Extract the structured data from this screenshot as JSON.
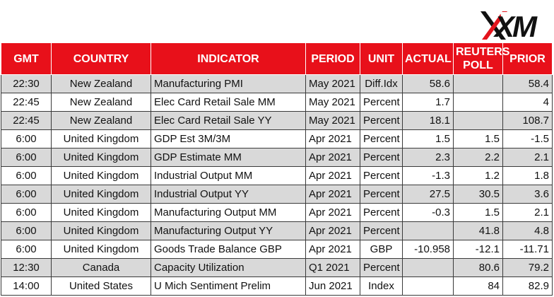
{
  "brand": {
    "logo_text": "XM"
  },
  "columns": {
    "gmt": "GMT",
    "country": "COUNTRY",
    "indicator": "INDICATOR",
    "period": "PERIOD",
    "unit": "UNIT",
    "actual": "ACTUAL",
    "poll": "REUTERS POLL",
    "prior": "PRIOR"
  },
  "rows": [
    {
      "gmt": "22:30",
      "country": "New Zealand",
      "indicator": "Manufacturing PMI",
      "period": "May 2021",
      "unit": "Diff.Idx",
      "actual": "58.6",
      "poll": "",
      "prior": "58.4"
    },
    {
      "gmt": "22:45",
      "country": "New Zealand",
      "indicator": "Elec Card Retail Sale MM",
      "period": "May 2021",
      "unit": "Percent",
      "actual": "1.7",
      "poll": "",
      "prior": "4"
    },
    {
      "gmt": "22:45",
      "country": "New Zealand",
      "indicator": "Elec Card Retail Sale YY",
      "period": "May 2021",
      "unit": "Percent",
      "actual": "18.1",
      "poll": "",
      "prior": "108.7"
    },
    {
      "gmt": "6:00",
      "country": "United Kingdom",
      "indicator": "GDP Est 3M/3M",
      "period": "Apr 2021",
      "unit": "Percent",
      "actual": "1.5",
      "poll": "1.5",
      "prior": "-1.5"
    },
    {
      "gmt": "6:00",
      "country": "United Kingdom",
      "indicator": "GDP Estimate MM",
      "period": "Apr 2021",
      "unit": "Percent",
      "actual": "2.3",
      "poll": "2.2",
      "prior": "2.1"
    },
    {
      "gmt": "6:00",
      "country": "United Kingdom",
      "indicator": "Industrial Output MM",
      "period": "Apr 2021",
      "unit": "Percent",
      "actual": "-1.3",
      "poll": "1.2",
      "prior": "1.8"
    },
    {
      "gmt": "6:00",
      "country": "United Kingdom",
      "indicator": "Industrial Output YY",
      "period": "Apr 2021",
      "unit": "Percent",
      "actual": "27.5",
      "poll": "30.5",
      "prior": "3.6"
    },
    {
      "gmt": "6:00",
      "country": "United Kingdom",
      "indicator": "Manufacturing Output MM",
      "period": "Apr 2021",
      "unit": "Percent",
      "actual": "-0.3",
      "poll": "1.5",
      "prior": "2.1"
    },
    {
      "gmt": "6:00",
      "country": "United Kingdom",
      "indicator": "Manufacturing Output YY",
      "period": "Apr 2021",
      "unit": "Percent",
      "actual": "",
      "poll": "41.8",
      "prior": "4.8"
    },
    {
      "gmt": "6:00",
      "country": "United Kingdom",
      "indicator": "Goods Trade Balance GBP",
      "period": "Apr 2021",
      "unit": "GBP",
      "actual": "-10.958",
      "poll": "-12.1",
      "prior": "-11.71"
    },
    {
      "gmt": "12:30",
      "country": "Canada",
      "indicator": "Capacity Utilization",
      "period": "Q1 2021",
      "unit": "Percent",
      "actual": "",
      "poll": "80.6",
      "prior": "79.2"
    },
    {
      "gmt": "14:00",
      "country": "United States",
      "indicator": "U Mich Sentiment Prelim",
      "period": "Jun 2021",
      "unit": "Index",
      "actual": "",
      "poll": "84",
      "prior": "82.9"
    }
  ],
  "colors": {
    "header_bg": "#e8101a",
    "shade_bg": "#d9d9d9",
    "logo_red": "#e3141c"
  },
  "icons": {
    "logo": "xm-logo-icon"
  }
}
